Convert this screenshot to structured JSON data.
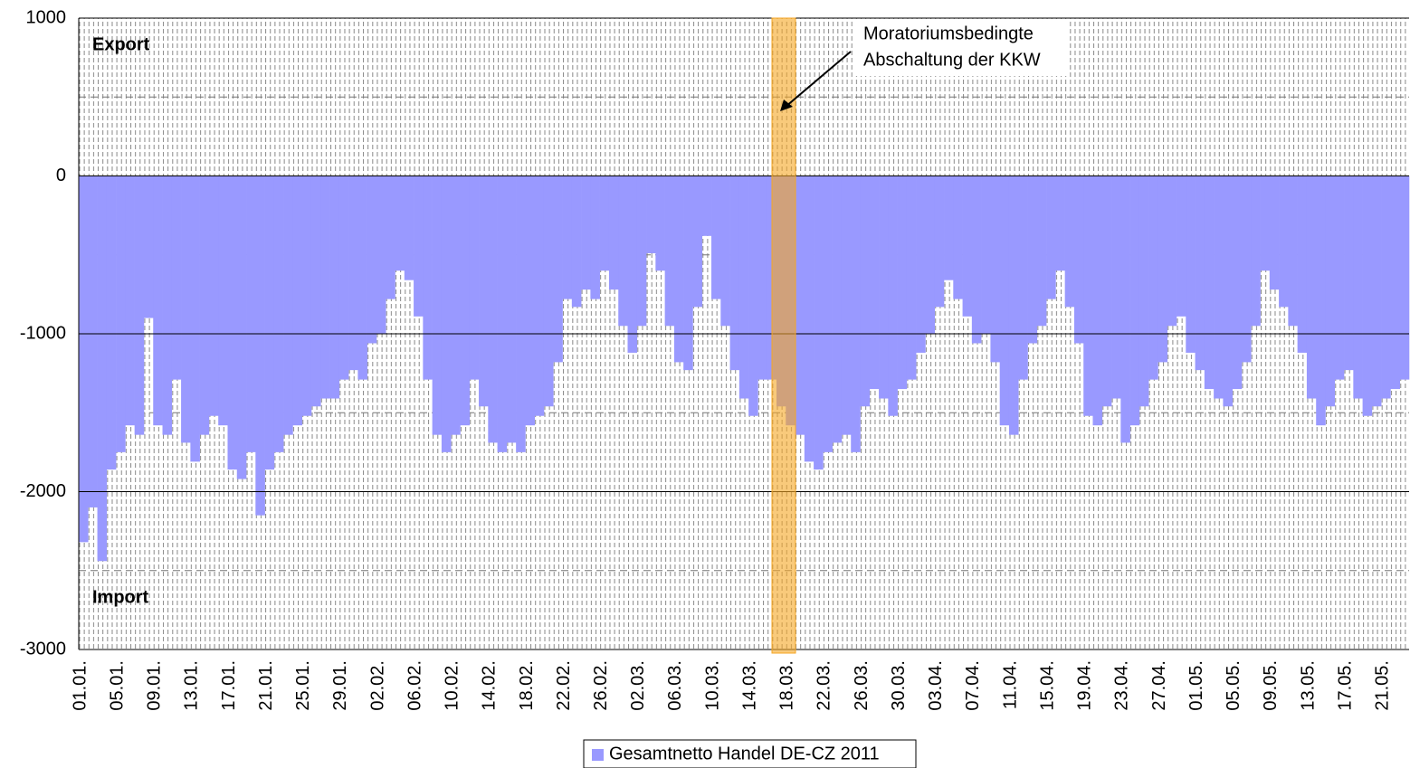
{
  "chart_data": {
    "type": "bar",
    "categories": [
      "01.01.",
      null,
      null,
      null,
      "05.01.",
      null,
      null,
      null,
      "09.01.",
      null,
      null,
      null,
      "13.01.",
      null,
      null,
      null,
      "17.01.",
      null,
      null,
      null,
      "21.01.",
      null,
      null,
      null,
      "25.01.",
      null,
      null,
      null,
      "29.01.",
      null,
      null,
      null,
      "02.02.",
      null,
      null,
      null,
      "06.02.",
      null,
      null,
      null,
      "10.02.",
      null,
      null,
      null,
      "14.02.",
      null,
      null,
      null,
      "18.02.",
      null,
      null,
      null,
      "22.02.",
      null,
      null,
      null,
      "26.02.",
      null,
      null,
      null,
      "02.03.",
      null,
      null,
      null,
      "06.03.",
      null,
      null,
      null,
      "10.03.",
      null,
      null,
      null,
      "14.03.",
      null,
      null,
      null,
      "18.03.",
      null,
      null,
      null,
      "22.03.",
      null,
      null,
      null,
      "26.03.",
      null,
      null,
      null,
      "30.03.",
      null,
      null,
      null,
      "03.04.",
      null,
      null,
      null,
      "07.04.",
      null,
      null,
      null,
      "11.04.",
      null,
      null,
      null,
      "15.04.",
      null,
      null,
      null,
      "19.04.",
      null,
      null,
      null,
      "23.04.",
      null,
      null,
      null,
      "27.04.",
      null,
      null,
      null,
      "01.05.",
      null,
      null,
      null,
      "05.05.",
      null,
      null,
      null,
      "09.05.",
      null,
      null,
      null,
      "13.05.",
      null,
      null,
      null,
      "17.05.",
      null,
      null,
      null,
      "21.05.",
      null,
      null
    ],
    "series": [
      {
        "name": "Gesamtnetto Handel DE-CZ 2011",
        "color": "#9999ff",
        "values": [
          -2320,
          -2100,
          -2440,
          -1860,
          -1750,
          -1580,
          -1640,
          -900,
          -1580,
          -1640,
          -1290,
          -1690,
          -1810,
          -1640,
          -1520,
          -1580,
          -1860,
          -1920,
          -1750,
          -2150,
          -1860,
          -1750,
          -1640,
          -1580,
          -1520,
          -1460,
          -1410,
          -1410,
          -1290,
          -1230,
          -1290,
          -1060,
          -1000,
          -780,
          -600,
          -660,
          -890,
          -1290,
          -1640,
          -1750,
          -1640,
          -1580,
          -1290,
          -1460,
          -1690,
          -1750,
          -1690,
          -1750,
          -1580,
          -1520,
          -1460,
          -1180,
          -780,
          -830,
          -720,
          -780,
          -600,
          -720,
          -950,
          -1120,
          -950,
          -490,
          -600,
          -950,
          -1180,
          -1230,
          -830,
          -380,
          -780,
          -950,
          -1230,
          -1410,
          -1520,
          -1290,
          -1290,
          -1460,
          -1580,
          -1640,
          -1810,
          -1860,
          -1750,
          -1690,
          -1640,
          -1750,
          -1460,
          -1350,
          -1410,
          -1520,
          -1350,
          -1290,
          -1120,
          -1000,
          -830,
          -660,
          -780,
          -890,
          -1060,
          -1000,
          -1180,
          -1580,
          -1640,
          -1290,
          -1060,
          -950,
          -780,
          -600,
          -830,
          -1060,
          -1520,
          -1580,
          -1460,
          -1410,
          -1690,
          -1580,
          -1460,
          -1290,
          -1180,
          -950,
          -890,
          -1120,
          -1230,
          -1350,
          -1410,
          -1460,
          -1350,
          -1180,
          -950,
          -600,
          -720,
          -830,
          -950,
          -1120,
          -1410,
          -1580,
          -1460,
          -1290,
          -1230,
          -1410,
          -1520,
          -1460,
          -1410,
          -1350,
          -1290
        ]
      }
    ],
    "ylim": [
      -3000,
      1000
    ],
    "yticks": [
      1000,
      0,
      -1000,
      -2000,
      -3000
    ],
    "minor_yticks": [
      500,
      -500,
      -1500,
      -2500
    ],
    "grid": true,
    "annotations": [
      "Export",
      "Import",
      "Moratoriumsbedingte",
      "Abschaltung der KKW"
    ]
  }
}
